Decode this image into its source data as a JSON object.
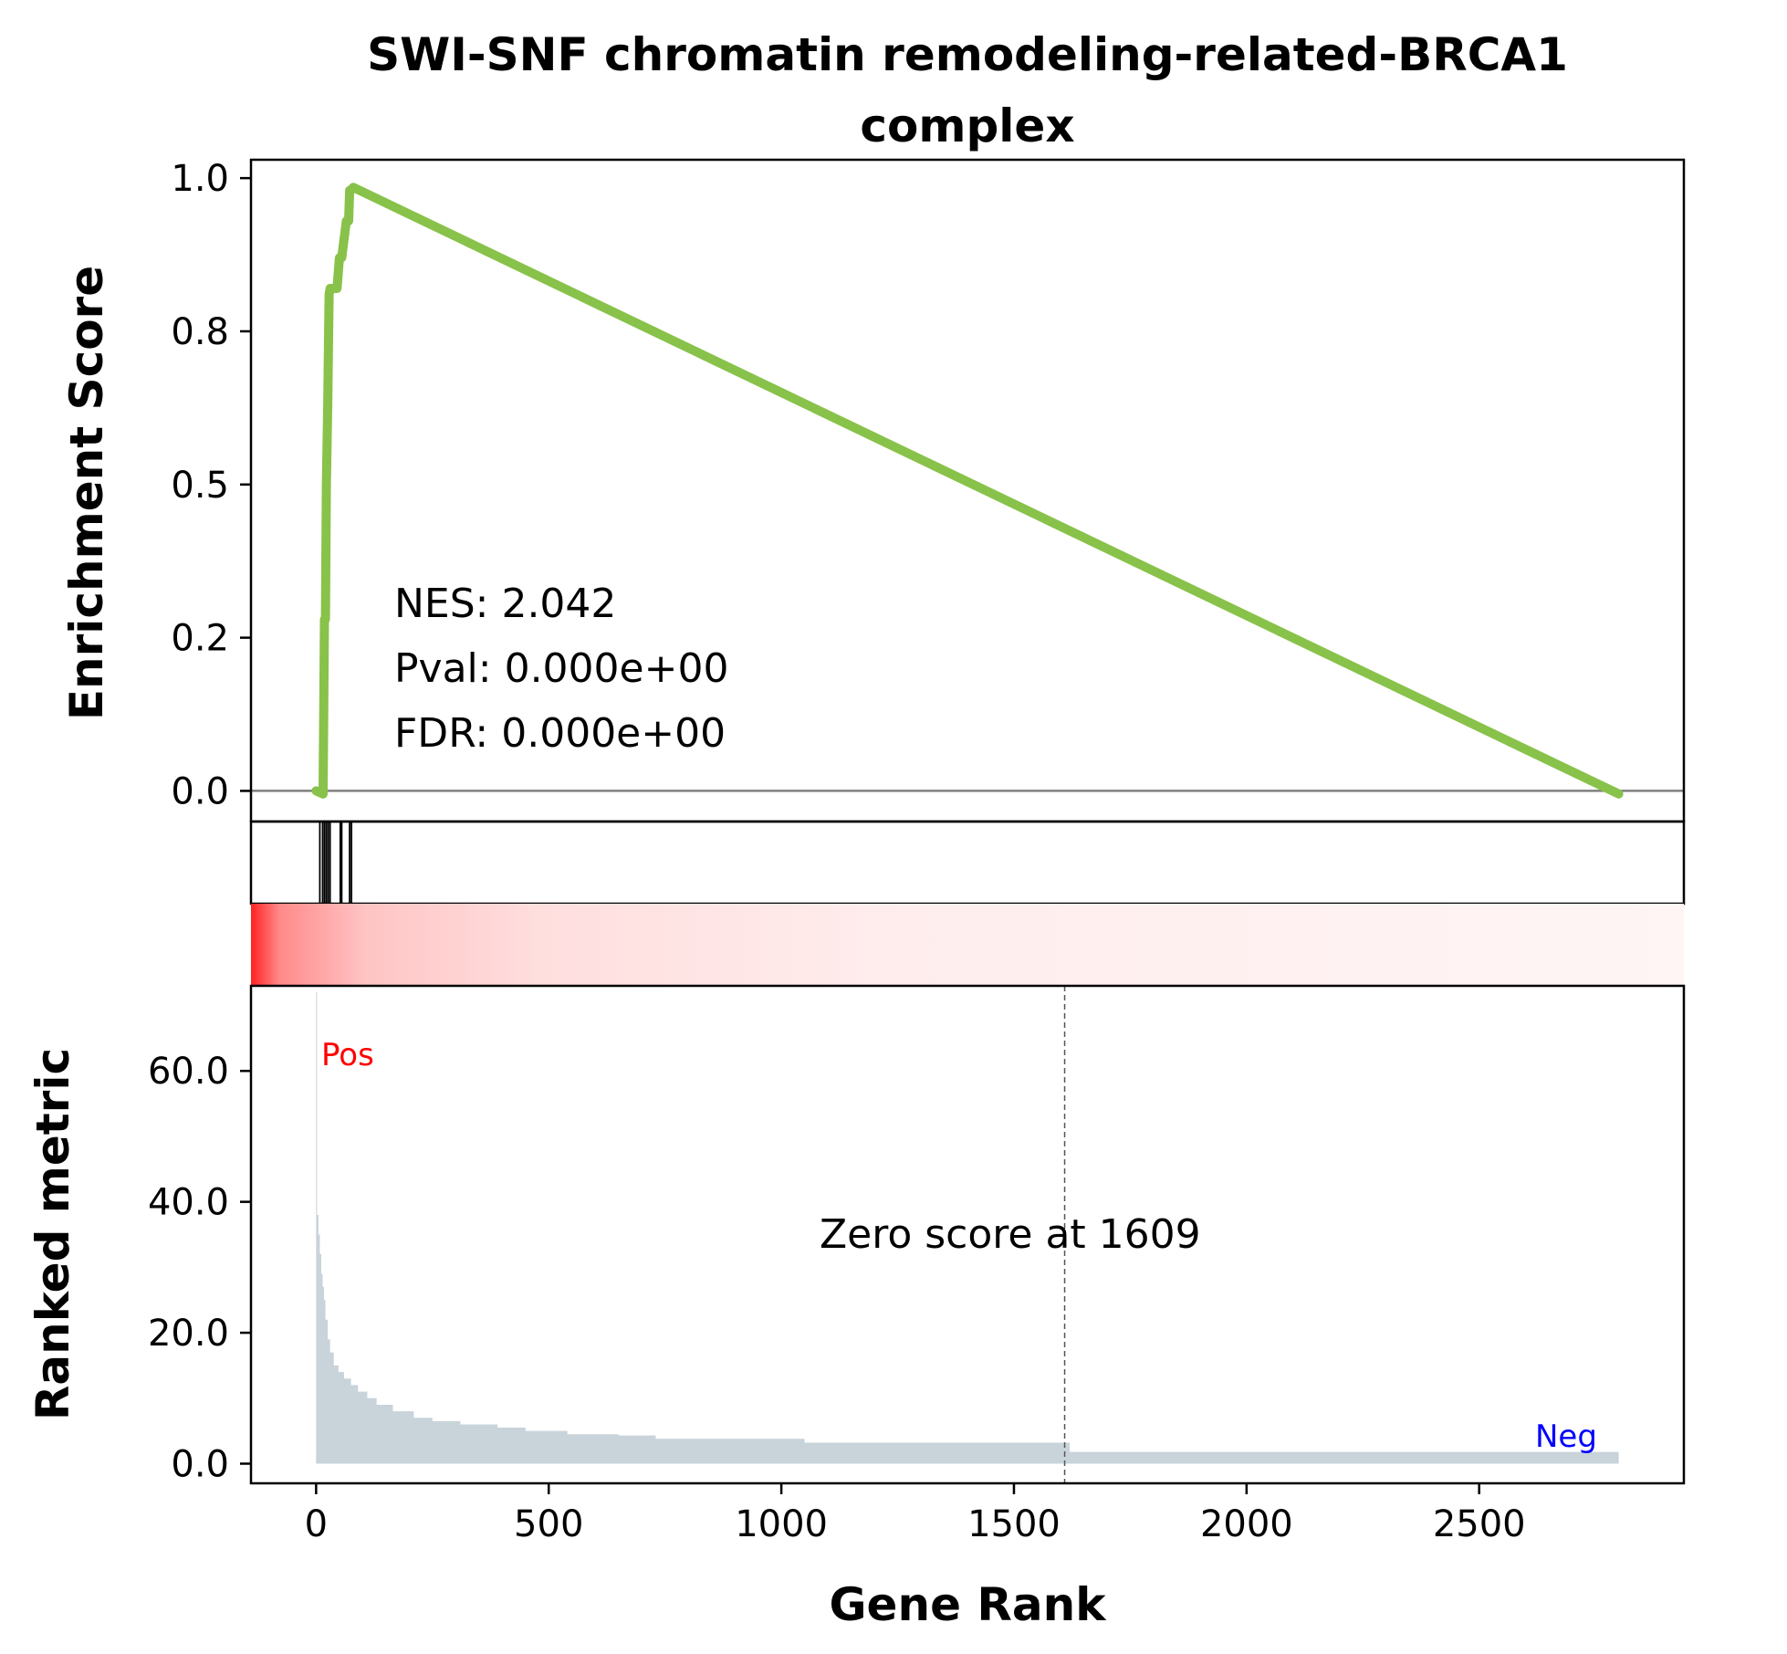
{
  "chart_data": {
    "type": "line",
    "title_lines": [
      "SWI-SNF chromatin remodeling-related-BRCA1",
      "complex"
    ],
    "xlabel": "Gene Rank",
    "es_panel": {
      "ylabel": "Enrichment Score",
      "yticks": [
        "0.0",
        "0.2",
        "0.5",
        "0.8",
        "1.0"
      ],
      "ytick_values": [
        0.0,
        0.25,
        0.5,
        0.75,
        1.0
      ],
      "ylim": [
        -0.05,
        1.03
      ],
      "line_color": "#88c24a",
      "zero_line_color": "#808080",
      "series": [
        {
          "x": [
            0,
            15,
            18,
            20,
            22,
            25,
            28,
            30,
            45,
            50,
            55,
            65,
            70,
            72,
            75,
            80,
            2800
          ],
          "y": [
            0.0,
            -0.005,
            0.28,
            0.28,
            0.5,
            0.63,
            0.81,
            0.82,
            0.82,
            0.87,
            0.87,
            0.93,
            0.93,
            0.98,
            0.98,
            0.985,
            -0.005
          ]
        }
      ],
      "annotations": {
        "nes": "NES: 2.042",
        "pval": "Pval: 0.000e+00",
        "fdr": "FDR: 0.000e+00"
      }
    },
    "hits_panel": {
      "hit_ranks": [
        8,
        14,
        18,
        22,
        26,
        30,
        52,
        55,
        72,
        76
      ]
    },
    "heatmap_panel": {
      "color_low": "#fff5f5",
      "color_high": "#ff2222"
    },
    "rank_panel": {
      "ylabel": "Ranked metric",
      "yticks": [
        "0.0",
        "20.0",
        "40.0",
        "60.0"
      ],
      "ytick_values": [
        0,
        20,
        40,
        60
      ],
      "ylim": [
        -3,
        73
      ],
      "fill_color": "#c8d3da",
      "zero_score_label": "Zero score at 1609",
      "zero_score_rank": 1609,
      "pos_label": "Pos",
      "pos_color": "#ff0000",
      "neg_label": "Neg",
      "neg_color": "#0000ff",
      "metric_steps": [
        [
          0,
          72
        ],
        [
          2,
          38
        ],
        [
          5,
          35
        ],
        [
          8,
          32
        ],
        [
          11,
          29
        ],
        [
          14,
          27
        ],
        [
          17,
          25
        ],
        [
          20,
          22
        ],
        [
          25,
          19
        ],
        [
          30,
          17
        ],
        [
          38,
          15
        ],
        [
          48,
          14
        ],
        [
          60,
          13
        ],
        [
          75,
          12
        ],
        [
          90,
          11
        ],
        [
          110,
          10
        ],
        [
          130,
          9
        ],
        [
          165,
          8
        ],
        [
          210,
          7
        ],
        [
          250,
          6.5
        ],
        [
          310,
          6
        ],
        [
          390,
          5.5
        ],
        [
          450,
          5
        ],
        [
          540,
          4.5
        ],
        [
          650,
          4.3
        ],
        [
          730,
          3.8
        ],
        [
          1050,
          3.2
        ],
        [
          1620,
          1.8
        ],
        [
          2800,
          1.8
        ]
      ]
    },
    "xticks": [
      "0",
      "500",
      "1000",
      "1500",
      "2000",
      "2500"
    ],
    "xtick_values": [
      0,
      500,
      1000,
      1500,
      2000,
      2500
    ],
    "xlim": [
      -140,
      2940
    ]
  }
}
